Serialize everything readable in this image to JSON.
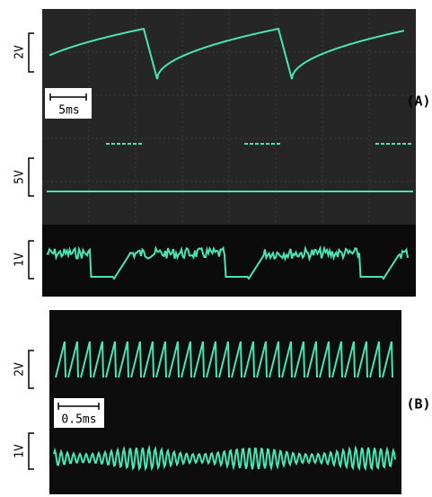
{
  "panel_a": {
    "label": "(A)",
    "scales": {
      "top_volt": "2V",
      "time": "5ms",
      "middle_volt": "5V",
      "bottom_volt": "1V"
    }
  },
  "panel_b": {
    "label": "(B)",
    "scales": {
      "top_volt": "2V",
      "time": "0.5ms",
      "bottom_volt": "1V"
    }
  }
}
